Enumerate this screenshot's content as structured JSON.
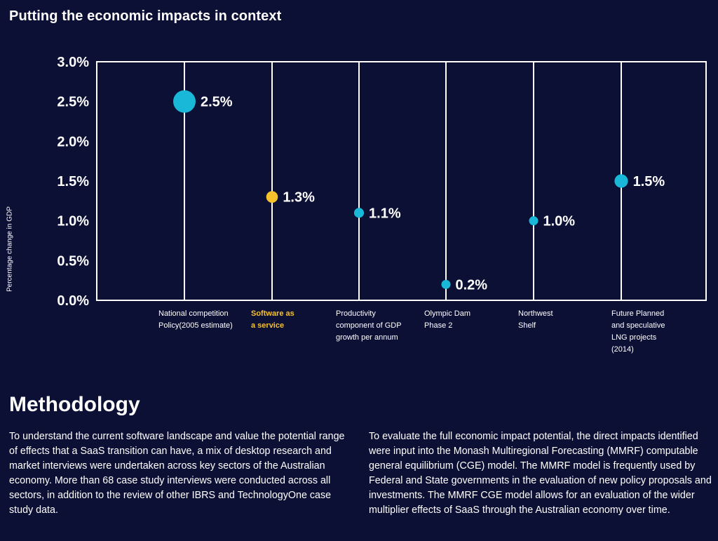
{
  "header": {
    "title": "Putting the economic impacts in context"
  },
  "colors": {
    "background": "#0d1035",
    "default_marker": "#1ab8d8",
    "highlight_marker": "#f6c12b",
    "text": "#ffffff",
    "highlight_text": "#f6c12b"
  },
  "chart_data": {
    "type": "scatter",
    "title": "Putting the economic impacts in context",
    "ylabel": "Percentage change in GDP",
    "xlabel": "",
    "ylim": [
      0,
      3.0
    ],
    "yticks": [
      "0.0%",
      "0.5%",
      "1.0%",
      "1.5%",
      "2.0%",
      "2.5%",
      "3.0%"
    ],
    "categories": [
      "National competition Policy(2005 estimate)",
      "Software as a service",
      "Productivity component of GDP growth per annum",
      "Olympic Dam Phase 2",
      "Northwest Shelf",
      "Future Planned and speculative LNG projects (2014)"
    ],
    "category_lines": [
      [
        "National competition",
        "Policy(2005 estimate)"
      ],
      [
        "Software as",
        "a service"
      ],
      [
        "Productivity",
        "component of GDP",
        "growth per annum"
      ],
      [
        "Olympic Dam",
        "Phase 2"
      ],
      [
        "Northwest",
        "Shelf"
      ],
      [
        "Future Planned",
        "and speculative",
        "LNG projects",
        "(2014)"
      ]
    ],
    "values": [
      2.5,
      1.3,
      1.1,
      0.2,
      1.0,
      1.5
    ],
    "value_labels": [
      "2.5%",
      "1.3%",
      "1.1%",
      "0.2%",
      "1.0%",
      "1.5%"
    ],
    "highlight_index": 1,
    "grid": true
  },
  "methodology": {
    "title": "Methodology",
    "left": "To understand the current software landscape and value the potential range of effects that a SaaS transition can have, a mix of desktop research and market interviews were undertaken across key sectors of the Australian economy. More than 68 case study interviews were conducted across all sectors, in addition to the review of other IBRS and TechnologyOne case study data.",
    "right": "To evaluate the full economic impact potential, the direct impacts identified were input into the Monash Multiregional Forecasting (MMRF) computable general equilibrium (CGE) model. The MMRF model is frequently used by Federal and State governments in the evaluation of new policy proposals and investments. The MMRF CGE model allows for an evaluation of the wider multiplier effects of SaaS through the Australian economy over time."
  }
}
